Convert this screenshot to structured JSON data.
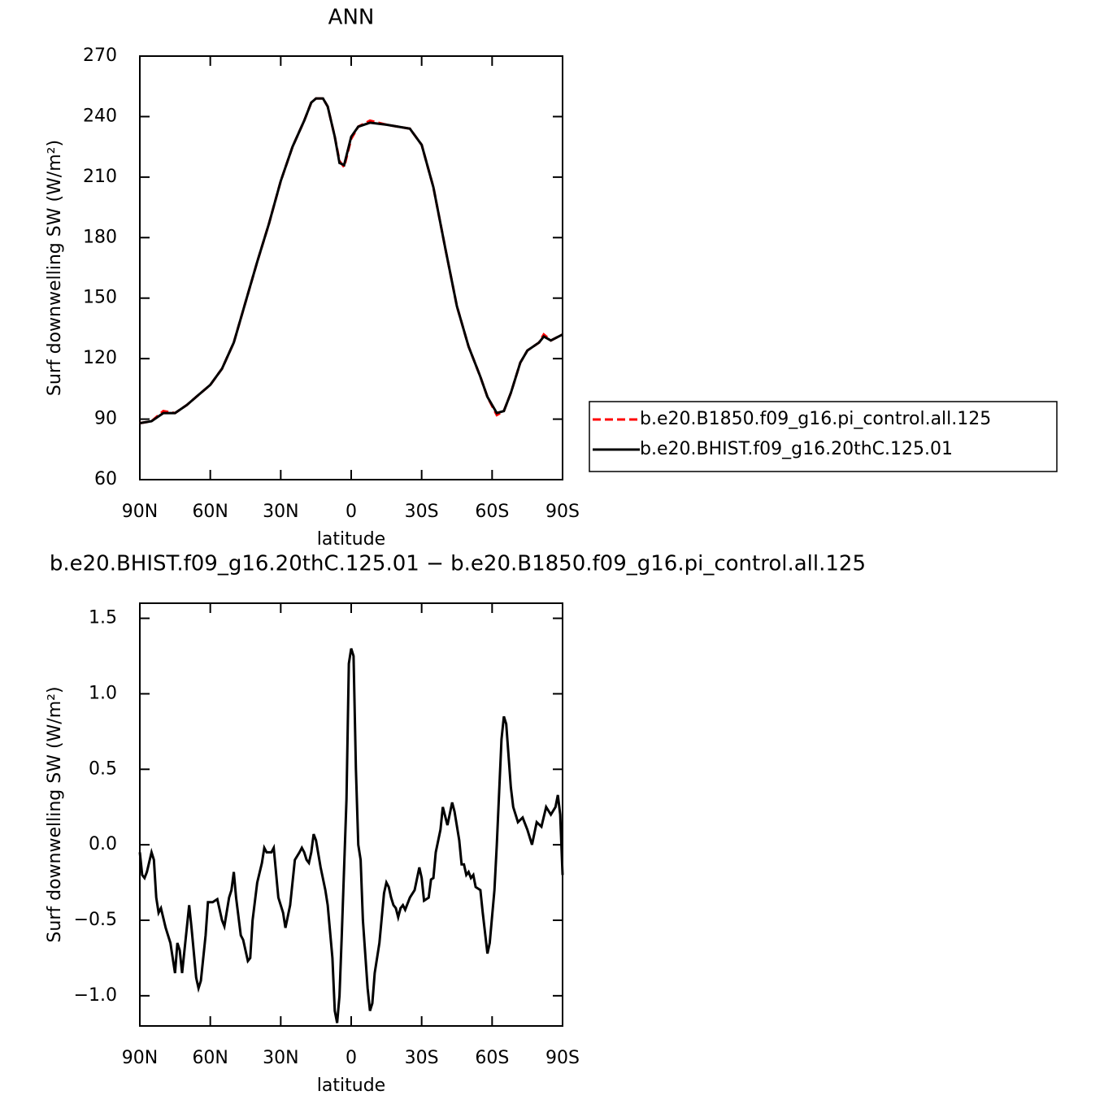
{
  "chart_data": [
    {
      "type": "line",
      "title": "ANN",
      "xlabel": "latitude",
      "ylabel": "Surf downwelling SW (W/m²)",
      "xlim": [
        90,
        -90
      ],
      "xticks": [
        {
          "value": 90,
          "label": "90N"
        },
        {
          "value": 60,
          "label": "60N"
        },
        {
          "value": 30,
          "label": "30N"
        },
        0,
        {
          "value": -30,
          "label": "30S"
        },
        {
          "value": -60,
          "label": "60S"
        },
        {
          "value": -90,
          "label": "90S"
        }
      ],
      "ylim": [
        60,
        270
      ],
      "yticks": [
        60,
        90,
        120,
        150,
        180,
        210,
        240,
        270
      ],
      "legend": "right",
      "x": [
        90,
        85,
        80,
        75,
        70,
        65,
        60,
        55,
        50,
        45,
        40,
        35,
        30,
        25,
        20,
        17,
        15,
        12,
        10,
        7,
        5,
        3,
        0,
        -3,
        -8,
        -15,
        -25,
        -30,
        -35,
        -40,
        -45,
        -50,
        -55,
        -58,
        -62,
        -65,
        -68,
        -72,
        -75,
        -80,
        -82,
        -85,
        -90
      ],
      "series": [
        {
          "name": "b.e20.B1850.f09_g16.pi_control.all.125",
          "color": "#ff0000",
          "dashed": true,
          "values": [
            88,
            89,
            94,
            93,
            97,
            102,
            107,
            115,
            128,
            148,
            168,
            187,
            208,
            225,
            238,
            247,
            249,
            249,
            245,
            230,
            218,
            215,
            229,
            235,
            238,
            236,
            234,
            226,
            205,
            175,
            146,
            126,
            111,
            101,
            92,
            94,
            103,
            118,
            124,
            128,
            132,
            129,
            132
          ]
        },
        {
          "name": "b.e20.BHIST.f09_g16.20thC.125.01",
          "color": "#000000",
          "dashed": false,
          "values": [
            88,
            89,
            93,
            93,
            97,
            102,
            107,
            115,
            128,
            148,
            168,
            187,
            208,
            225,
            238,
            247,
            249,
            249,
            245,
            230,
            217,
            216,
            230,
            235,
            237,
            236,
            234,
            226,
            205,
            175,
            146,
            126,
            111,
            101,
            93,
            94,
            103,
            118,
            124,
            128,
            131,
            129,
            132
          ]
        }
      ]
    },
    {
      "type": "line",
      "title": "b.e20.BHIST.f09_g16.20thC.125.01 − b.e20.B1850.f09_g16.pi_control.all.125",
      "xlabel": "latitude",
      "ylabel": "Surf downwelling SW (W/m²)",
      "xlim": [
        90,
        -90
      ],
      "xticks": [
        {
          "value": 90,
          "label": "90N"
        },
        {
          "value": 60,
          "label": "60N"
        },
        {
          "value": 30,
          "label": "30N"
        },
        0,
        {
          "value": -30,
          "label": "30S"
        },
        {
          "value": -60,
          "label": "60S"
        },
        {
          "value": -90,
          "label": "90S"
        }
      ],
      "ylim": [
        -1.2,
        1.6
      ],
      "yticks": [
        {
          "value": -1,
          "label": "−1.0"
        },
        {
          "value": -0.5,
          "label": "−0.5"
        },
        {
          "value": 0,
          "label": "0.0"
        },
        0.5,
        {
          "value": 1,
          "label": "1.0"
        },
        1.5
      ],
      "color": "#000000",
      "x": [
        90,
        89,
        88,
        87,
        85,
        84,
        83,
        82,
        81,
        79,
        77,
        75,
        74,
        73,
        72,
        71,
        69,
        68,
        66,
        65,
        64,
        62,
        61,
        59,
        57,
        55,
        54,
        52,
        51,
        50,
        49,
        47,
        46,
        44,
        43,
        42,
        40,
        38,
        37,
        36,
        34,
        33,
        31,
        29,
        28,
        26,
        24,
        22,
        21,
        20,
        19,
        18,
        17,
        16,
        15,
        13,
        11,
        10,
        8,
        7,
        6,
        5,
        4,
        2,
        1,
        0,
        -1,
        -2,
        -3,
        -4,
        -5,
        -7,
        -8,
        -9,
        -10,
        -12,
        -14,
        -15,
        -16,
        -17,
        -18,
        -19,
        -20,
        -21,
        -22,
        -23,
        -25,
        -27,
        -29,
        -30,
        -31,
        -33,
        -34,
        -35,
        -36,
        -38,
        -39,
        -41,
        -43,
        -44,
        -46,
        -47,
        -48,
        -49,
        -50,
        -51,
        -52,
        -53,
        -55,
        -56,
        -58,
        -59,
        -61,
        -62,
        -63,
        -64,
        -65,
        -66,
        -68,
        -69,
        -71,
        -73,
        -75,
        -77,
        -79,
        -81,
        -83,
        -85,
        -87,
        -88,
        -89,
        -90
      ],
      "values": [
        -0.05,
        -0.2,
        -0.22,
        -0.18,
        -0.05,
        -0.1,
        -0.35,
        -0.45,
        -0.42,
        -0.55,
        -0.65,
        -0.85,
        -0.65,
        -0.7,
        -0.85,
        -0.7,
        -0.4,
        -0.55,
        -0.88,
        -0.95,
        -0.9,
        -0.6,
        -0.38,
        -0.38,
        -0.36,
        -0.5,
        -0.54,
        -0.35,
        -0.3,
        -0.18,
        -0.35,
        -0.6,
        -0.63,
        -0.77,
        -0.75,
        -0.5,
        -0.25,
        -0.12,
        -0.02,
        -0.05,
        -0.05,
        -0.02,
        -0.35,
        -0.45,
        -0.55,
        -0.4,
        -0.1,
        -0.05,
        -0.02,
        -0.05,
        -0.1,
        -0.12,
        -0.05,
        0.07,
        0.03,
        -0.15,
        -0.3,
        -0.4,
        -0.75,
        -1.1,
        -1.18,
        -1.0,
        -0.6,
        0.3,
        1.2,
        1.3,
        1.25,
        0.5,
        0.0,
        -0.1,
        -0.5,
        -0.95,
        -1.1,
        -1.05,
        -0.85,
        -0.65,
        -0.32,
        -0.25,
        -0.28,
        -0.35,
        -0.4,
        -0.42,
        -0.48,
        -0.42,
        -0.4,
        -0.43,
        -0.35,
        -0.3,
        -0.15,
        -0.22,
        -0.37,
        -0.35,
        -0.23,
        -0.22,
        -0.05,
        0.1,
        0.25,
        0.13,
        0.28,
        0.22,
        0.03,
        -0.13,
        -0.13,
        -0.2,
        -0.18,
        -0.22,
        -0.2,
        -0.28,
        -0.3,
        -0.45,
        -0.72,
        -0.65,
        -0.3,
        0.0,
        0.35,
        0.7,
        0.85,
        0.8,
        0.38,
        0.25,
        0.15,
        0.18,
        0.1,
        0.0,
        0.15,
        0.12,
        0.25,
        0.2,
        0.25,
        0.33,
        0.2,
        -0.2
      ]
    }
  ]
}
